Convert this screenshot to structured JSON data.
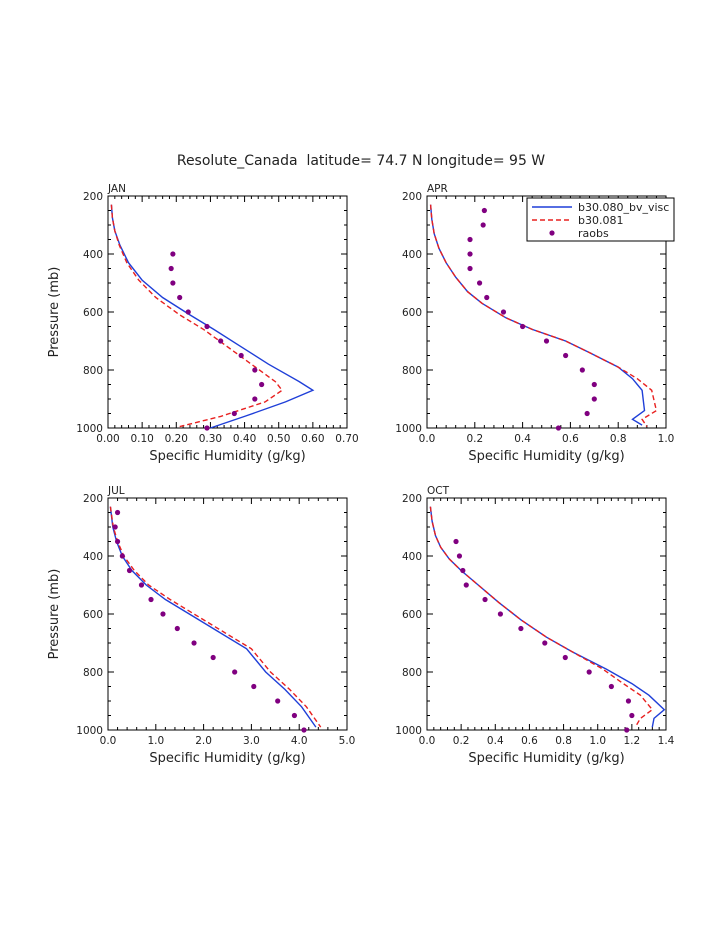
{
  "figure_title": "Resolute_Canada  latitude= 74.7 N longitude= 95 W",
  "legend": {
    "entries": [
      "b30.080_bv_visc",
      "b30.081",
      "raobs"
    ],
    "colors": [
      "#1f3fd8",
      "#e8201f",
      "#800080"
    ]
  },
  "chart_data": [
    {
      "type": "line",
      "panel": "JAN",
      "xlabel": "Specific Humidity (g/kg)",
      "ylabel": "Pressure (mb)",
      "xlim": [
        0,
        0.7
      ],
      "xticks": [
        0.0,
        0.1,
        0.2,
        0.3,
        0.4,
        0.5,
        0.6,
        0.7
      ],
      "xtick_labels": [
        "0.00",
        "0.10",
        "0.20",
        "0.30",
        "0.40",
        "0.50",
        "0.60",
        "0.70"
      ],
      "ylim": [
        1000,
        200
      ],
      "yticks": [
        200,
        400,
        600,
        800,
        1000
      ],
      "ytick_labels": [
        "200",
        "400",
        "600",
        "800",
        "1000"
      ],
      "series": [
        {
          "name": "b30.080_bv_visc",
          "style": "solid",
          "x": [
            0.01,
            0.013,
            0.02,
            0.035,
            0.06,
            0.1,
            0.16,
            0.24,
            0.31,
            0.39,
            0.47,
            0.56,
            0.6,
            0.52,
            0.4,
            0.3
          ],
          "y": [
            230,
            275,
            320,
            370,
            430,
            490,
            550,
            610,
            660,
            720,
            780,
            840,
            870,
            910,
            960,
            1000
          ]
        },
        {
          "name": "b30.081",
          "style": "dashed",
          "x": [
            0.01,
            0.013,
            0.02,
            0.033,
            0.055,
            0.09,
            0.14,
            0.21,
            0.28,
            0.35,
            0.42,
            0.49,
            0.51,
            0.46,
            0.33,
            0.21
          ],
          "y": [
            230,
            275,
            320,
            370,
            430,
            490,
            550,
            610,
            660,
            720,
            780,
            840,
            870,
            910,
            960,
            995
          ]
        },
        {
          "name": "raobs",
          "style": "points",
          "x": [
            0.19,
            0.185,
            0.19,
            0.21,
            0.235,
            0.29,
            0.33,
            0.39,
            0.43,
            0.45,
            0.43,
            0.37,
            0.29
          ],
          "y": [
            400,
            450,
            500,
            550,
            600,
            650,
            700,
            750,
            800,
            850,
            900,
            950,
            1000
          ]
        }
      ]
    },
    {
      "type": "line",
      "panel": "APR",
      "xlabel": "Specific Humidity (g/kg)",
      "ylabel": "",
      "xlim": [
        0,
        1.0
      ],
      "xticks": [
        0.0,
        0.2,
        0.4,
        0.6,
        0.8,
        1.0
      ],
      "xtick_labels": [
        "0.0",
        "0.2",
        "0.4",
        "0.6",
        "0.8",
        "1.0"
      ],
      "ylim": [
        1000,
        200
      ],
      "yticks": [
        200,
        400,
        600,
        800,
        1000
      ],
      "ytick_labels": [
        "200",
        "400",
        "600",
        "800",
        "1000"
      ],
      "series": [
        {
          "name": "b30.080_bv_visc",
          "style": "solid",
          "x": [
            0.015,
            0.02,
            0.03,
            0.05,
            0.08,
            0.12,
            0.17,
            0.23,
            0.33,
            0.44,
            0.58,
            0.68,
            0.8,
            0.86,
            0.9,
            0.91,
            0.86,
            0.9
          ],
          "y": [
            230,
            280,
            330,
            380,
            430,
            480,
            530,
            570,
            620,
            660,
            700,
            740,
            790,
            830,
            870,
            940,
            970,
            990
          ]
        },
        {
          "name": "b30.081",
          "style": "dashed",
          "x": [
            0.015,
            0.02,
            0.03,
            0.05,
            0.08,
            0.12,
            0.17,
            0.23,
            0.33,
            0.44,
            0.58,
            0.68,
            0.8,
            0.88,
            0.94,
            0.96,
            0.9,
            0.92
          ],
          "y": [
            230,
            280,
            330,
            380,
            430,
            480,
            530,
            570,
            620,
            660,
            700,
            740,
            790,
            830,
            870,
            940,
            970,
            995
          ]
        },
        {
          "name": "raobs",
          "style": "points",
          "x": [
            0.24,
            0.235,
            0.18,
            0.18,
            0.18,
            0.22,
            0.25,
            0.32,
            0.4,
            0.5,
            0.58,
            0.65,
            0.7,
            0.7,
            0.67,
            0.55
          ],
          "y": [
            250,
            300,
            350,
            400,
            450,
            500,
            550,
            600,
            650,
            700,
            750,
            800,
            850,
            900,
            950,
            1000
          ]
        }
      ]
    },
    {
      "type": "line",
      "panel": "JUL",
      "xlabel": "Specific Humidity (g/kg)",
      "ylabel": "Pressure (mb)",
      "xlim": [
        0,
        5.0
      ],
      "xticks": [
        0.0,
        1.0,
        2.0,
        3.0,
        4.0,
        5.0
      ],
      "xtick_labels": [
        "0.0",
        "1.0",
        "2.0",
        "3.0",
        "4.0",
        "5.0"
      ],
      "ylim": [
        1000,
        200
      ],
      "yticks": [
        200,
        400,
        600,
        800,
        1000
      ],
      "ytick_labels": [
        "200",
        "400",
        "600",
        "800",
        "1000"
      ],
      "series": [
        {
          "name": "b30.080_bv_visc",
          "style": "solid",
          "x": [
            0.05,
            0.1,
            0.18,
            0.3,
            0.5,
            0.8,
            1.2,
            1.7,
            2.3,
            2.9,
            3.3,
            3.7,
            4.05,
            4.35
          ],
          "y": [
            230,
            300,
            350,
            400,
            450,
            500,
            550,
            600,
            660,
            720,
            800,
            860,
            920,
            990
          ]
        },
        {
          "name": "b30.081",
          "style": "dashed",
          "x": [
            0.05,
            0.11,
            0.2,
            0.33,
            0.55,
            0.85,
            1.3,
            1.8,
            2.4,
            3.0,
            3.4,
            3.8,
            4.15,
            4.45
          ],
          "y": [
            230,
            300,
            350,
            400,
            450,
            500,
            550,
            600,
            660,
            720,
            800,
            860,
            920,
            990
          ]
        },
        {
          "name": "raobs",
          "style": "points",
          "x": [
            0.2,
            0.15,
            0.2,
            0.3,
            0.45,
            0.7,
            0.9,
            1.15,
            1.45,
            1.8,
            2.2,
            2.65,
            3.05,
            3.55,
            3.9,
            4.1
          ],
          "y": [
            250,
            300,
            350,
            400,
            450,
            500,
            550,
            600,
            650,
            700,
            750,
            800,
            850,
            900,
            950,
            1000
          ]
        }
      ]
    },
    {
      "type": "line",
      "panel": "OCT",
      "xlabel": "Specific Humidity (g/kg)",
      "ylabel": "",
      "xlim": [
        0,
        1.4
      ],
      "xticks": [
        0.0,
        0.2,
        0.4,
        0.6,
        0.8,
        1.0,
        1.2,
        1.4
      ],
      "xtick_labels": [
        "0.0",
        "0.2",
        "0.4",
        "0.6",
        "0.8",
        "1.0",
        "1.2",
        "1.4"
      ],
      "ylim": [
        1000,
        200
      ],
      "yticks": [
        200,
        400,
        600,
        800,
        1000
      ],
      "ytick_labels": [
        "200",
        "400",
        "600",
        "800",
        "1000"
      ],
      "series": [
        {
          "name": "b30.080_bv_visc",
          "style": "solid",
          "x": [
            0.02,
            0.03,
            0.05,
            0.08,
            0.13,
            0.2,
            0.3,
            0.42,
            0.55,
            0.7,
            0.85,
            1.05,
            1.2,
            1.3,
            1.39,
            1.33,
            1.32
          ],
          "y": [
            230,
            280,
            330,
            370,
            410,
            450,
            500,
            560,
            620,
            680,
            730,
            790,
            840,
            880,
            930,
            960,
            990
          ]
        },
        {
          "name": "b30.081",
          "style": "dashed",
          "x": [
            0.02,
            0.03,
            0.05,
            0.08,
            0.13,
            0.2,
            0.3,
            0.42,
            0.55,
            0.7,
            0.85,
            1.03,
            1.15,
            1.25,
            1.32,
            1.25,
            1.22
          ],
          "y": [
            230,
            280,
            330,
            370,
            410,
            450,
            500,
            560,
            620,
            680,
            730,
            790,
            840,
            880,
            930,
            960,
            990
          ]
        },
        {
          "name": "raobs",
          "style": "points",
          "x": [
            0.17,
            0.19,
            0.21,
            0.23,
            0.34,
            0.43,
            0.55,
            0.69,
            0.81,
            0.95,
            1.08,
            1.18,
            1.2,
            1.17
          ],
          "y": [
            350,
            400,
            450,
            500,
            550,
            600,
            650,
            700,
            750,
            800,
            850,
            900,
            950,
            1000
          ]
        }
      ]
    }
  ]
}
